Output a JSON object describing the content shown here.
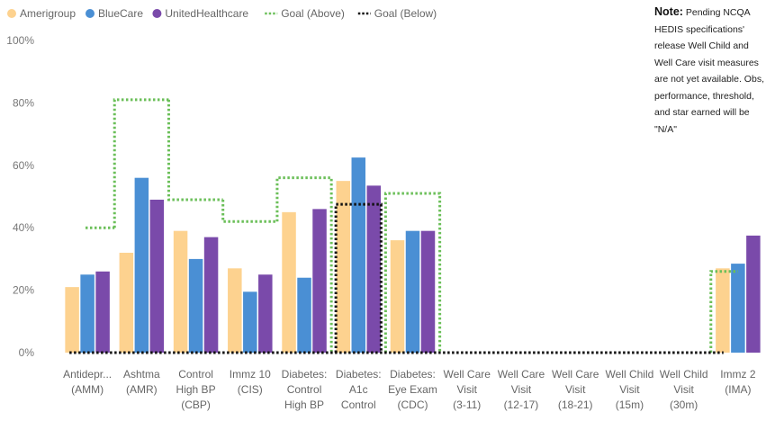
{
  "note": {
    "label": "Note:",
    "text": "Pending NCQA HEDIS specifications' release Well Child and Well Care visit measures are not yet available. Obs, performance, threshold, and star earned will be \"N/A\""
  },
  "chart_data": {
    "type": "bar",
    "ylim": [
      0,
      100
    ],
    "yticks": [
      "0%",
      "20%",
      "40%",
      "60%",
      "80%",
      "100%"
    ],
    "legend_position": "top-left",
    "grid": false,
    "categories": [
      [
        "Antidepr...",
        "(AMM)"
      ],
      [
        "Ashtma",
        "(AMR)"
      ],
      [
        "Control",
        "High BP",
        "(CBP)"
      ],
      [
        "Immz 10",
        "(CIS)"
      ],
      [
        "Diabetes:",
        "Control",
        "High BP"
      ],
      [
        "Diabetes:",
        "A1c",
        "Control"
      ],
      [
        "Diabetes:",
        "Eye Exam",
        "(CDC)"
      ],
      [
        "Well Care",
        "Visit",
        "(3-11)"
      ],
      [
        "Well Care",
        "Visit",
        "(12-17)"
      ],
      [
        "Well Care",
        "Visit",
        "(18-21)"
      ],
      [
        "Well Child",
        "Visit",
        "(15m)"
      ],
      [
        "Well Child",
        "Visit",
        "(30m)"
      ],
      [
        "Immz 2",
        "(IMA)"
      ]
    ],
    "series": [
      {
        "name": "Amerigroup",
        "color": "#fdd28f",
        "values": [
          21,
          32,
          39,
          27,
          45,
          55,
          36,
          0,
          0,
          0,
          0,
          0,
          27
        ]
      },
      {
        "name": "BlueCare",
        "color": "#4a8fd4",
        "values": [
          25,
          56,
          30,
          19.5,
          24,
          62.5,
          39,
          0,
          0,
          0,
          0,
          0,
          28.5
        ]
      },
      {
        "name": "UnitedHealthcare",
        "color": "#7a4aaa",
        "values": [
          26,
          49,
          37,
          25,
          46,
          53.5,
          39,
          0,
          0,
          0,
          0,
          0,
          37.5
        ]
      }
    ],
    "goals": [
      {
        "name": "Goal (Above)",
        "color": "#6bbf59",
        "style": "dotted",
        "values": [
          40,
          81,
          49,
          42,
          56,
          0,
          51,
          0,
          0,
          0,
          0,
          0,
          26
        ]
      },
      {
        "name": "Goal (Below)",
        "color": "#111111",
        "style": "dotted",
        "values": [
          0,
          0,
          0,
          0,
          0,
          47.5,
          0,
          0,
          0,
          0,
          0,
          0,
          0
        ]
      }
    ]
  }
}
